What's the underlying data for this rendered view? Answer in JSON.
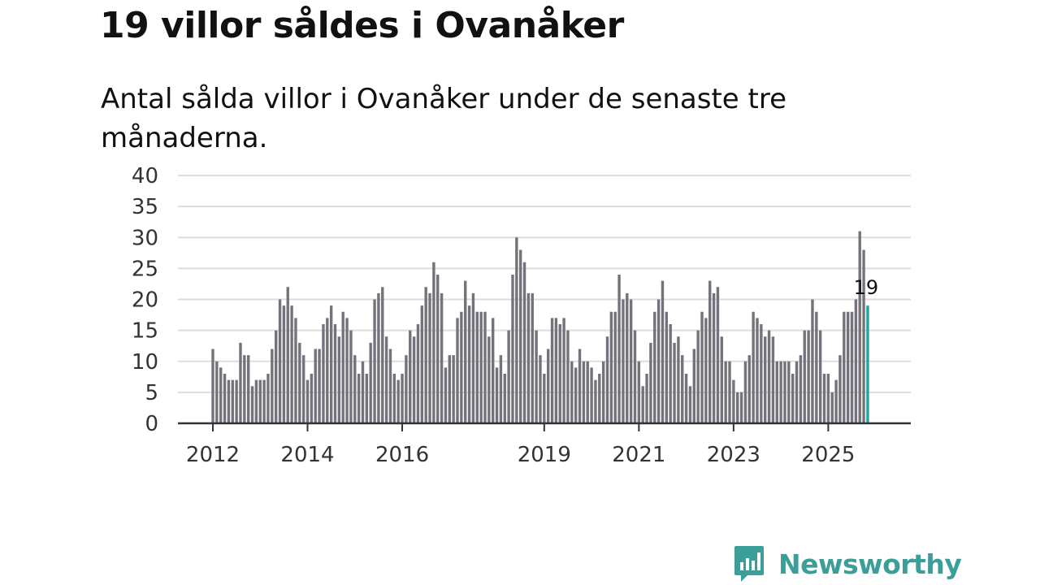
{
  "header": {
    "title": "19 villor såldes i Ovanåker",
    "subtitle": "Antal sålda villor i Ovanåker under de senaste tre månaderna."
  },
  "brand": {
    "name": "Newsworthy",
    "color": "#3c9e98"
  },
  "colors": {
    "bar": "#74737b",
    "highlight": "#22a39f",
    "grid": "#dddddd",
    "axis": "#333333"
  },
  "chart_data": {
    "type": "bar",
    "title": "19 villor såldes i Ovanåker",
    "xlabel": "",
    "ylabel": "",
    "ylim": [
      0,
      40
    ],
    "yticks": [
      "0",
      "5",
      "10",
      "15",
      "20",
      "25",
      "30",
      "35",
      "40"
    ],
    "xticks": [
      {
        "label": "2012",
        "index": 0
      },
      {
        "label": "2014",
        "index": 24
      },
      {
        "label": "2016",
        "index": 48
      },
      {
        "label": "2019",
        "index": 84
      },
      {
        "label": "2021",
        "index": 108
      },
      {
        "label": "2023",
        "index": 132
      },
      {
        "label": "2025",
        "index": 156
      }
    ],
    "values": [
      12,
      10,
      9,
      8,
      7,
      7,
      7,
      13,
      11,
      11,
      6,
      7,
      7,
      7,
      8,
      12,
      15,
      20,
      19,
      22,
      19,
      17,
      13,
      11,
      7,
      8,
      12,
      12,
      16,
      17,
      19,
      16,
      14,
      18,
      17,
      15,
      11,
      8,
      10,
      8,
      13,
      20,
      21,
      22,
      14,
      12,
      8,
      7,
      8,
      11,
      15,
      14,
      16,
      19,
      22,
      21,
      26,
      24,
      21,
      9,
      11,
      11,
      17,
      18,
      23,
      19,
      21,
      18,
      18,
      18,
      14,
      17,
      9,
      11,
      8,
      15,
      24,
      30,
      28,
      26,
      21,
      21,
      15,
      11,
      8,
      12,
      17,
      17,
      16,
      17,
      15,
      10,
      9,
      12,
      10,
      10,
      9,
      7,
      8,
      10,
      14,
      18,
      18,
      24,
      20,
      21,
      20,
      15,
      10,
      6,
      8,
      13,
      18,
      20,
      23,
      18,
      16,
      13,
      14,
      11,
      8,
      6,
      12,
      15,
      18,
      17,
      23,
      21,
      22,
      14,
      10,
      10,
      7,
      5,
      5,
      10,
      11,
      18,
      17,
      16,
      14,
      15,
      14,
      10,
      10,
      10,
      10,
      8,
      10,
      11,
      15,
      15,
      20,
      18,
      15,
      8,
      8,
      5,
      7,
      11,
      18,
      18,
      18,
      20,
      31,
      28,
      19
    ],
    "highlight_index": 166,
    "highlight_label": "19"
  }
}
